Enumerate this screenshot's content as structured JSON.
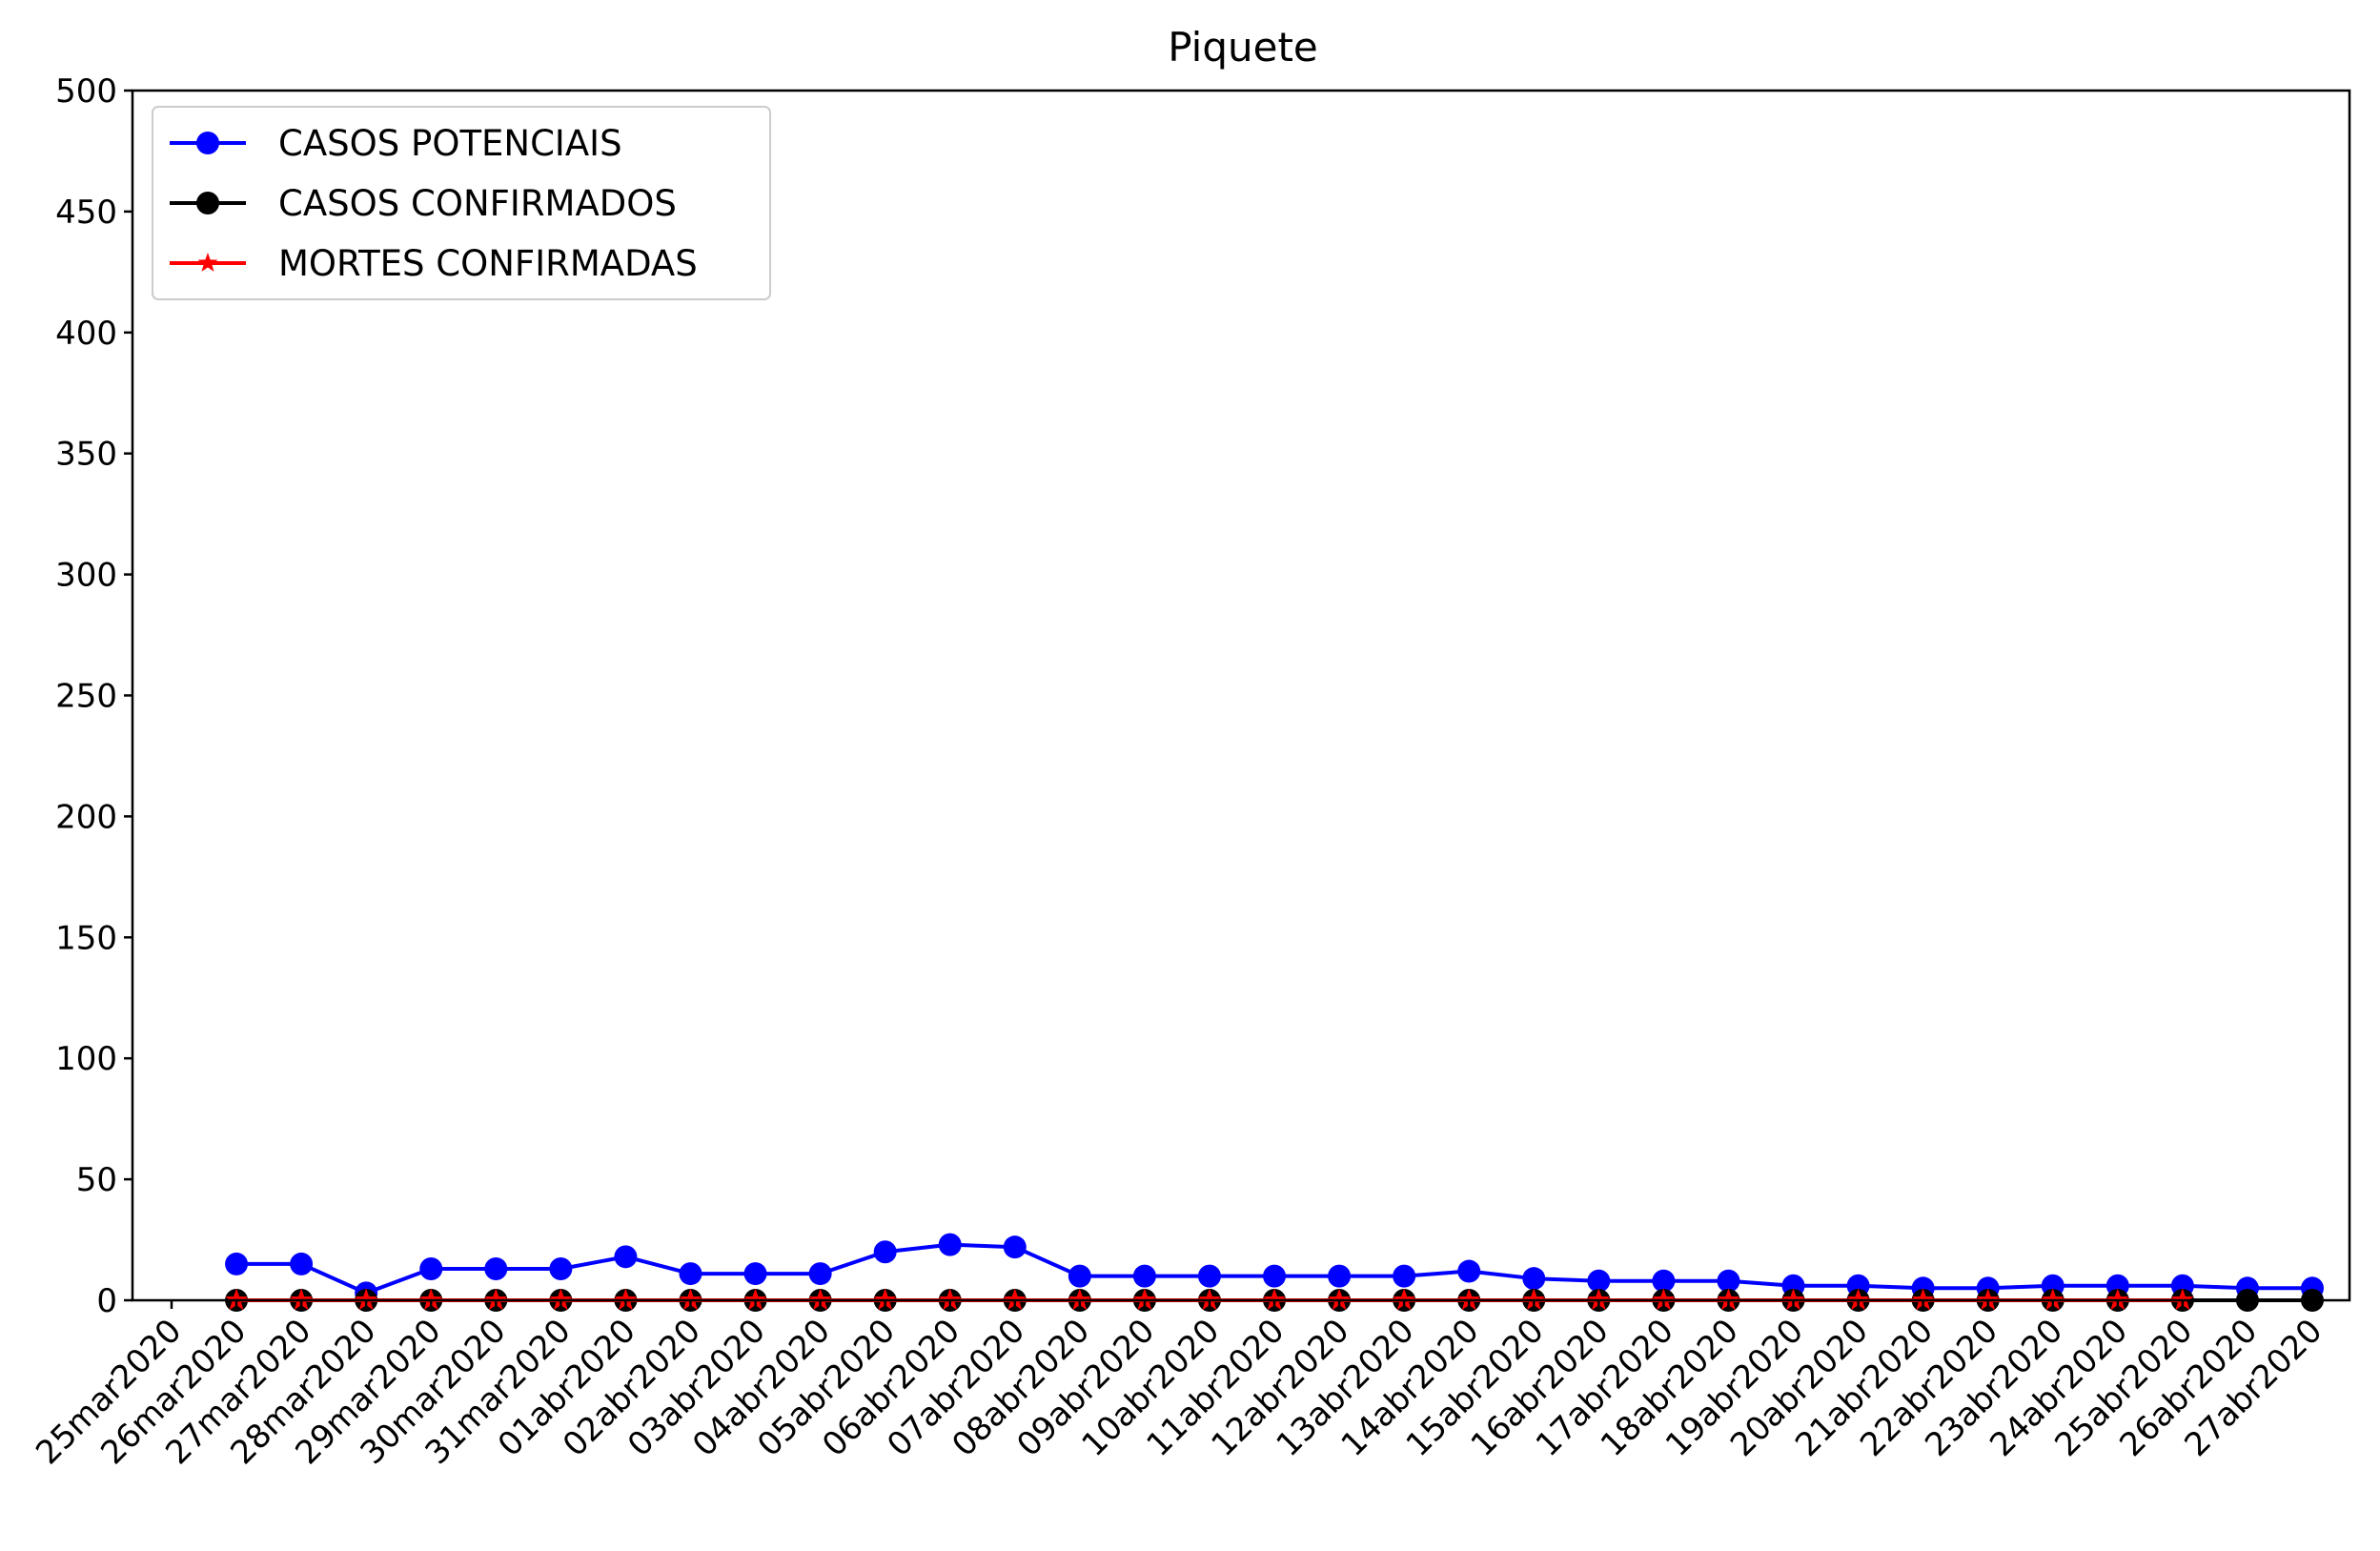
{
  "chart_data": {
    "type": "line",
    "title": "Piquete",
    "xlabel": "",
    "ylabel": "",
    "ylim": [
      0,
      500
    ],
    "yticks": [
      "0",
      "50",
      "100",
      "150",
      "200",
      "250",
      "300",
      "350",
      "400",
      "450",
      "500"
    ],
    "x": [
      "25mar2020",
      "26mar2020",
      "27mar2020",
      "28mar2020",
      "29mar2020",
      "30mar2020",
      "31mar2020",
      "01abr2020",
      "02abr2020",
      "03abr2020",
      "04abr2020",
      "05abr2020",
      "06abr2020",
      "07abr2020",
      "08abr2020",
      "09abr2020",
      "10abr2020",
      "11abr2020",
      "12abr2020",
      "13abr2020",
      "14abr2020",
      "15abr2020",
      "16abr2020",
      "17abr2020",
      "18abr2020",
      "19abr2020",
      "20abr2020",
      "21abr2020",
      "22abr2020",
      "23abr2020",
      "24abr2020",
      "25abr2020",
      "26abr2020",
      "27abr2020"
    ],
    "grid": false,
    "legend_position": "upper-left",
    "series": [
      {
        "name": "CASOS POTENCIAIS",
        "color": "#0000ff",
        "marker": "circle",
        "values": [
          null,
          15,
          15,
          3,
          13,
          13,
          13,
          18,
          11,
          11,
          11,
          20,
          23,
          22,
          10,
          10,
          10,
          10,
          10,
          10,
          12,
          9,
          8,
          8,
          8,
          6,
          6,
          5,
          5,
          6,
          6,
          6,
          5,
          5
        ]
      },
      {
        "name": "CASOS CONFIRMADOS",
        "color": "#000000",
        "marker": "circle",
        "values": [
          null,
          0,
          0,
          0,
          0,
          0,
          0,
          0,
          0,
          0,
          0,
          0,
          0,
          0,
          0,
          0,
          0,
          0,
          0,
          0,
          0,
          0,
          0,
          0,
          0,
          0,
          0,
          0,
          0,
          0,
          0,
          0,
          0,
          0
        ]
      },
      {
        "name": "MORTES CONFIRMADAS",
        "color": "#ff0000",
        "marker": "star",
        "values": [
          null,
          0,
          0,
          0,
          0,
          0,
          0,
          0,
          0,
          0,
          0,
          0,
          0,
          0,
          0,
          0,
          0,
          0,
          0,
          0,
          0,
          0,
          0,
          0,
          0,
          0,
          0,
          0,
          0,
          0,
          0,
          0,
          null,
          null
        ]
      }
    ]
  }
}
